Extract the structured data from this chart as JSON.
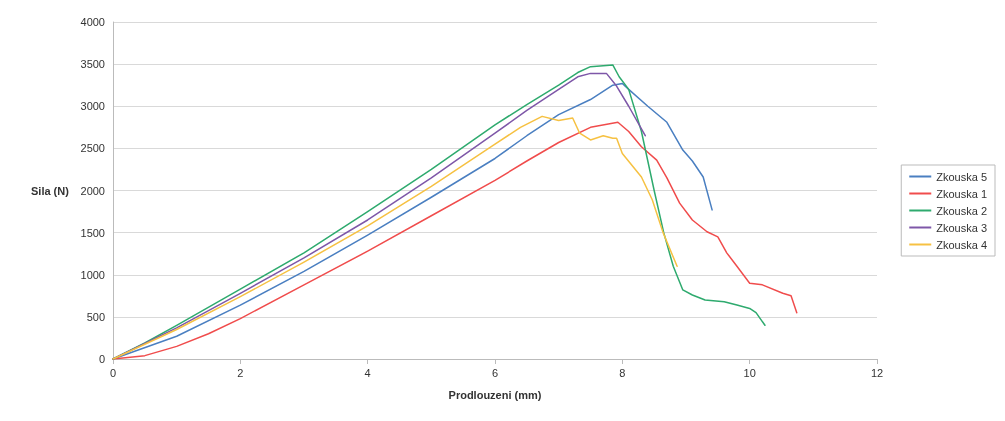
{
  "chart_data": {
    "type": "line",
    "xlabel": "Prodlouzeni (mm)",
    "ylabel": "Sila (N)",
    "xlim": [
      0,
      12
    ],
    "xticks": [
      0,
      2,
      4,
      6,
      8,
      10,
      12
    ],
    "ylim": [
      0,
      4000
    ],
    "yticks": [
      0,
      500,
      1000,
      1500,
      2000,
      2500,
      3000,
      3500,
      4000
    ],
    "grid": "y",
    "legend": "right",
    "marker": "none",
    "line_style": "solid",
    "series": [
      {
        "name": "Zkouska 5",
        "color": "#4a7fc1",
        "x": [
          0,
          1,
          2,
          3,
          4,
          5,
          6,
          6.5,
          7,
          7.5,
          7.85,
          8.0,
          8.1,
          8.4,
          8.7,
          8.95,
          9.1,
          9.27,
          9.41
        ],
        "values": [
          0,
          270,
          640,
          1040,
          1470,
          1920,
          2380,
          2650,
          2900,
          3080,
          3250,
          3270,
          3200,
          3000,
          2810,
          2480,
          2350,
          2160,
          1770
        ]
      },
      {
        "name": "Zkouska 1",
        "color": "#f04c4c",
        "x": [
          0,
          0.5,
          1,
          1.5,
          2,
          3,
          4,
          5,
          6,
          6.5,
          7,
          7.5,
          7.93,
          8.1,
          8.3,
          8.54,
          8.7,
          8.9,
          9.1,
          9.33,
          9.5,
          9.64,
          9.8,
          10.0,
          10.2,
          10.52,
          10.65,
          10.74
        ],
        "values": [
          0,
          40,
          150,
          300,
          480,
          880,
          1280,
          1700,
          2120,
          2350,
          2570,
          2750,
          2810,
          2700,
          2520,
          2360,
          2150,
          1850,
          1650,
          1510,
          1450,
          1260,
          1100,
          900,
          880,
          780,
          750,
          550
        ]
      },
      {
        "name": "Zkouska 2",
        "color": "#2eaa6e",
        "x": [
          0,
          0.5,
          1,
          2,
          3,
          4,
          5,
          6,
          6.5,
          7,
          7.3,
          7.5,
          7.7,
          7.85,
          7.95,
          8.1,
          8.3,
          8.5,
          8.65,
          8.8,
          8.95,
          9.1,
          9.3,
          9.6,
          9.8,
          10.0,
          10.1,
          10.24
        ],
        "values": [
          0,
          190,
          400,
          830,
          1260,
          1750,
          2250,
          2780,
          3020,
          3250,
          3400,
          3470,
          3480,
          3490,
          3350,
          3200,
          2700,
          2000,
          1500,
          1100,
          820,
          760,
          700,
          680,
          640,
          600,
          550,
          400
        ]
      },
      {
        "name": "Zkouska 3",
        "color": "#7e57a8",
        "x": [
          0,
          1,
          2,
          3,
          4,
          5,
          6,
          6.5,
          7,
          7.3,
          7.5,
          7.75,
          7.9,
          8.1,
          8.36
        ],
        "values": [
          0,
          370,
          780,
          1200,
          1650,
          2150,
          2680,
          2950,
          3200,
          3350,
          3390,
          3390,
          3250,
          3000,
          2650
        ]
      },
      {
        "name": "Zkouska 4",
        "color": "#f6c142",
        "x": [
          0,
          1,
          2,
          3,
          4,
          5,
          6,
          6.4,
          6.74,
          7.0,
          7.22,
          7.33,
          7.5,
          7.7,
          7.85,
          7.91,
          8.0,
          8.3,
          8.47,
          8.64,
          8.86
        ],
        "values": [
          0,
          350,
          740,
          1150,
          1580,
          2050,
          2550,
          2750,
          2880,
          2830,
          2860,
          2680,
          2600,
          2650,
          2620,
          2620,
          2440,
          2160,
          1890,
          1500,
          1100
        ]
      }
    ]
  }
}
